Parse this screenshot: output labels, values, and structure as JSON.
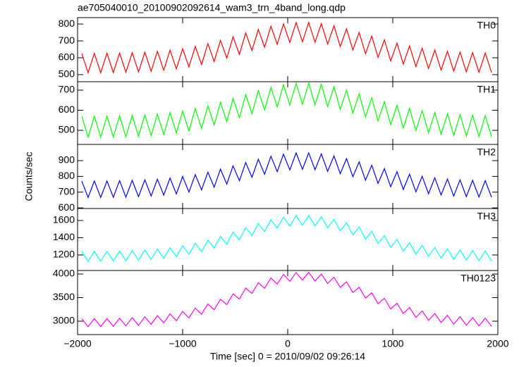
{
  "chart_data": [
    {
      "type": "line",
      "title": "ae705040010_20100902092614_wam3_trn_4band_long.qdp",
      "xlim": [
        -2000,
        2000
      ],
      "ylim": [
        458,
        838
      ],
      "yticks": [
        500,
        600,
        700,
        800
      ],
      "x": [
        -1960,
        -1900,
        -1840,
        -1780,
        -1720,
        -1660,
        -1600,
        -1540,
        -1480,
        -1420,
        -1360,
        -1300,
        -1240,
        -1180,
        -1120,
        -1060,
        -1000,
        -940,
        -880,
        -820,
        -760,
        -700,
        -640,
        -580,
        -520,
        -460,
        -400,
        -340,
        -280,
        -220,
        -160,
        -100,
        -40,
        20,
        80,
        140,
        200,
        260,
        320,
        380,
        440,
        500,
        560,
        620,
        680,
        740,
        800,
        860,
        920,
        980,
        1040,
        1100,
        1160,
        1220,
        1280,
        1340,
        1400,
        1460,
        1520,
        1580,
        1640,
        1700,
        1760,
        1820,
        1880,
        1940
      ],
      "series": [
        {
          "name": "TH0",
          "color": "#ff0000",
          "values": [
            625,
            511,
            626,
            511,
            627,
            512,
            628,
            514,
            630,
            516,
            633,
            520,
            638,
            526,
            645,
            534,
            654,
            546,
            667,
            560,
            684,
            578,
            703,
            598,
            724,
            620,
            747,
            643,
            768,
            663,
            787,
            680,
            801,
            691,
            809,
            695,
            809,
            692,
            803,
            682,
            790,
            666,
            772,
            646,
            750,
            624,
            728,
            602,
            706,
            581,
            687,
            563,
            670,
            548,
            657,
            536,
            646,
            527,
            639,
            521,
            634,
            517,
            630,
            514,
            628,
            512
          ]
        }
      ]
    },
    {
      "type": "line",
      "xlim": [
        -2000,
        2000
      ],
      "ylim": [
        430,
        742
      ],
      "yticks": [
        500,
        600,
        700
      ],
      "x": [
        -1960,
        -1900,
        -1840,
        -1780,
        -1720,
        -1660,
        -1600,
        -1540,
        -1480,
        -1420,
        -1360,
        -1300,
        -1240,
        -1180,
        -1120,
        -1060,
        -1000,
        -940,
        -880,
        -820,
        -760,
        -700,
        -640,
        -580,
        -520,
        -460,
        -400,
        -340,
        -280,
        -220,
        -160,
        -100,
        -40,
        20,
        80,
        140,
        200,
        260,
        320,
        380,
        440,
        500,
        560,
        620,
        680,
        740,
        800,
        860,
        920,
        980,
        1040,
        1100,
        1160,
        1220,
        1280,
        1340,
        1400,
        1460,
        1520,
        1580,
        1640,
        1700,
        1760,
        1820,
        1880,
        1940
      ],
      "series": [
        {
          "name": "TH1",
          "color": "#00ff00",
          "values": [
            570,
            466,
            571,
            466,
            571,
            467,
            572,
            468,
            574,
            470,
            577,
            474,
            581,
            479,
            588,
            487,
            596,
            497,
            608,
            510,
            622,
            526,
            639,
            544,
            658,
            563,
            678,
            583,
            698,
            602,
            714,
            616,
            727,
            626,
            734,
            630,
            735,
            627,
            729,
            618,
            717,
            604,
            701,
            586,
            682,
            567,
            662,
            547,
            642,
            528,
            625,
            512,
            610,
            499,
            598,
            488,
            589,
            480,
            582,
            475,
            578,
            471,
            575,
            469,
            573,
            467
          ]
        }
      ]
    },
    {
      "type": "line",
      "ylabel": "Counts/sec",
      "xlim": [
        -2000,
        2000
      ],
      "ylim": [
        596,
        1003
      ],
      "yticks": [
        600,
        700,
        800,
        900
      ],
      "x": [
        -1960,
        -1900,
        -1840,
        -1780,
        -1720,
        -1660,
        -1600,
        -1540,
        -1480,
        -1420,
        -1360,
        -1300,
        -1240,
        -1180,
        -1120,
        -1060,
        -1000,
        -940,
        -880,
        -820,
        -760,
        -700,
        -640,
        -580,
        -520,
        -460,
        -400,
        -340,
        -280,
        -220,
        -160,
        -100,
        -40,
        20,
        80,
        140,
        200,
        260,
        320,
        380,
        440,
        500,
        560,
        620,
        680,
        740,
        800,
        860,
        920,
        980,
        1040,
        1100,
        1160,
        1220,
        1280,
        1340,
        1400,
        1460,
        1520,
        1580,
        1640,
        1700,
        1760,
        1820,
        1880,
        1940
      ],
      "series": [
        {
          "name": "TH2",
          "color": "#0000ff",
          "values": [
            770,
            666,
            771,
            666,
            771,
            667,
            773,
            668,
            775,
            671,
            778,
            675,
            782,
            681,
            789,
            689,
            799,
            700,
            811,
            714,
            827,
            731,
            846,
            751,
            867,
            772,
            888,
            794,
            909,
            814,
            928,
            830,
            941,
            841,
            949,
            845,
            950,
            842,
            943,
            832,
            930,
            817,
            913,
            798,
            892,
            776,
            870,
            755,
            849,
            734,
            830,
            717,
            814,
            702,
            801,
            690,
            791,
            682,
            783,
            675,
            778,
            671,
            775,
            669,
            773,
            667
          ]
        }
      ]
    },
    {
      "type": "line",
      "xlim": [
        -2000,
        2000
      ],
      "ylim": [
        1020,
        1739
      ],
      "yticks": [
        1200,
        1400,
        1600
      ],
      "x": [
        -1960,
        -1900,
        -1840,
        -1780,
        -1720,
        -1660,
        -1600,
        -1540,
        -1480,
        -1420,
        -1360,
        -1300,
        -1240,
        -1180,
        -1120,
        -1060,
        -1000,
        -940,
        -880,
        -820,
        -760,
        -700,
        -640,
        -580,
        -520,
        -460,
        -400,
        -340,
        -280,
        -220,
        -160,
        -100,
        -40,
        20,
        80,
        140,
        200,
        260,
        320,
        380,
        440,
        500,
        560,
        620,
        680,
        740,
        800,
        860,
        920,
        980,
        1040,
        1100,
        1160,
        1220,
        1280,
        1340,
        1400,
        1460,
        1520,
        1580,
        1640,
        1700,
        1760,
        1820,
        1880,
        1940
      ],
      "series": [
        {
          "name": "TH3",
          "color": "#00ffff",
          "values": [
            1241,
            1126,
            1242,
            1128,
            1243,
            1130,
            1246,
            1133,
            1251,
            1139,
            1258,
            1148,
            1269,
            1161,
            1285,
            1180,
            1307,
            1206,
            1336,
            1239,
            1373,
            1279,
            1416,
            1325,
            1465,
            1375,
            1516,
            1426,
            1565,
            1472,
            1608,
            1510,
            1639,
            1535,
            1657,
            1545,
            1659,
            1538,
            1644,
            1515,
            1614,
            1480,
            1573,
            1434,
            1524,
            1384,
            1474,
            1334,
            1424,
            1286,
            1380,
            1245,
            1342,
            1211,
            1311,
            1184,
            1288,
            1164,
            1271,
            1149,
            1259,
            1140,
            1251,
            1134,
            1247,
            1130
          ]
        }
      ]
    },
    {
      "type": "line",
      "xlabel": "Time [sec] 0 = 2010/09/02 09:26:14",
      "xlim": [
        -2000,
        2000
      ],
      "xticks": [
        {
          "value": -2000,
          "label": "−2000"
        },
        {
          "value": -1000,
          "label": "−1000"
        },
        0,
        1000,
        2000
      ],
      "ylim": [
        2716,
        4075
      ],
      "yticks": [
        3000,
        3500,
        4000
      ],
      "x": [
        -1960,
        -1900,
        -1840,
        -1780,
        -1720,
        -1660,
        -1600,
        -1540,
        -1480,
        -1420,
        -1360,
        -1300,
        -1240,
        -1180,
        -1120,
        -1060,
        -1000,
        -940,
        -880,
        -820,
        -760,
        -700,
        -640,
        -580,
        -520,
        -460,
        -400,
        -340,
        -280,
        -220,
        -160,
        -100,
        -40,
        20,
        80,
        140,
        200,
        260,
        320,
        380,
        440,
        500,
        560,
        620,
        680,
        740,
        800,
        860,
        920,
        980,
        1040,
        1100,
        1160,
        1220,
        1280,
        1340,
        1400,
        1460,
        1520,
        1580,
        1640,
        1700,
        1760,
        1820,
        1880,
        1940
      ],
      "series": [
        {
          "name": "TH0123",
          "color": "#ff00ff",
          "values": [
            3052,
            2883,
            3054,
            2886,
            3058,
            2891,
            3064,
            2899,
            3075,
            2913,
            3092,
            2934,
            3117,
            2965,
            3155,
            3010,
            3207,
            3070,
            3277,
            3148,
            3364,
            3243,
            3466,
            3352,
            3581,
            3470,
            3700,
            3589,
            3815,
            3699,
            3916,
            3788,
            3992,
            3847,
            4033,
            3870,
            4037,
            3853,
            4001,
            3800,
            3931,
            3716,
            3834,
            3609,
            3720,
            3491,
            3600,
            3372,
            3485,
            3260,
            3380,
            3163,
            3291,
            3082,
            3218,
            3019,
            3163,
            2971,
            3123,
            2937,
            3096,
            2915,
            3077,
            2901,
            3066,
            2892
          ]
        }
      ]
    }
  ]
}
